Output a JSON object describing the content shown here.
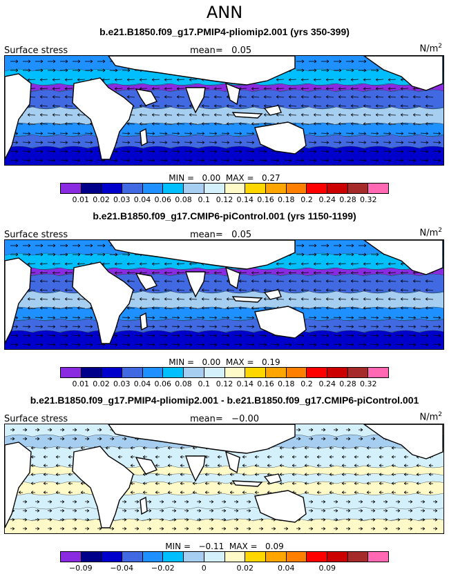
{
  "season": "ANN",
  "panels": [
    {
      "title": "b.e21.B1850.f09_g17.PMIP4-pliomip2.001 (yrs 350-399)",
      "field": "Surface stress",
      "mean_label": "mean=",
      "mean_value": "0.05",
      "units": "N/m",
      "units_exp": "2",
      "min_label": "MIN =",
      "min_value": "0.00",
      "max_label": "MAX =",
      "max_value": "0.27",
      "colors": [
        "#8a2be2",
        "#00008b",
        "#0000cd",
        "#4169e1",
        "#1e90ff",
        "#00bfff",
        "#a6cef0",
        "#d4f0fa",
        "#fffac8",
        "#ffd700",
        "#ffa500",
        "#ff7f00",
        "#ff0000",
        "#cd0000",
        "#a52a2a",
        "#ff69b4"
      ],
      "ticks": [
        "0.01",
        "0.02",
        "0.03",
        "0.04",
        "0.06",
        "0.08",
        "0.1",
        "0.12",
        "0.14",
        "0.16",
        "0.18",
        "0.2",
        "0.24",
        "0.28",
        "0.32"
      ]
    },
    {
      "title": "b.e21.B1850.f09_g17.CMIP6-piControl.001 (yrs 1150-1199)",
      "field": "Surface stress",
      "mean_label": "mean=",
      "mean_value": "0.05",
      "units": "N/m",
      "units_exp": "2",
      "min_label": "MIN =",
      "min_value": "0.00",
      "max_label": "MAX =",
      "max_value": "0.19",
      "colors": [
        "#8a2be2",
        "#00008b",
        "#0000cd",
        "#4169e1",
        "#1e90ff",
        "#00bfff",
        "#a6cef0",
        "#d4f0fa",
        "#fffac8",
        "#ffd700",
        "#ffa500",
        "#ff7f00",
        "#ff0000",
        "#cd0000",
        "#a52a2a",
        "#ff69b4"
      ],
      "ticks": [
        "0.01",
        "0.02",
        "0.03",
        "0.04",
        "0.06",
        "0.08",
        "0.1",
        "0.12",
        "0.14",
        "0.16",
        "0.18",
        "0.2",
        "0.24",
        "0.28",
        "0.32"
      ]
    },
    {
      "title": "b.e21.B1850.f09_g17.PMIP4-pliomip2.001 - b.e21.B1850.f09_g17.CMIP6-piControl.001",
      "field": "Surface stress",
      "mean_label": "mean=",
      "mean_value": "−0.00",
      "units": "N/m",
      "units_exp": "2",
      "min_label": "MIN =",
      "min_value": "−0.11",
      "max_label": "MAX =",
      "max_value": "0.09",
      "colors": [
        "#8a2be2",
        "#00008b",
        "#0000cd",
        "#4169e1",
        "#1e90ff",
        "#00bfff",
        "#a6cef0",
        "#d4f0fa",
        "#fffac8",
        "#ffd700",
        "#ffa500",
        "#ff7f00",
        "#ff0000",
        "#cd0000",
        "#a52a2a",
        "#ff69b4"
      ],
      "ticks": [
        "−0.09",
        "",
        "−0.04",
        "",
        "−0.02",
        "",
        "0",
        "",
        "0.02",
        "",
        "0.04",
        "",
        "0.09",
        "",
        ""
      ]
    }
  ]
}
